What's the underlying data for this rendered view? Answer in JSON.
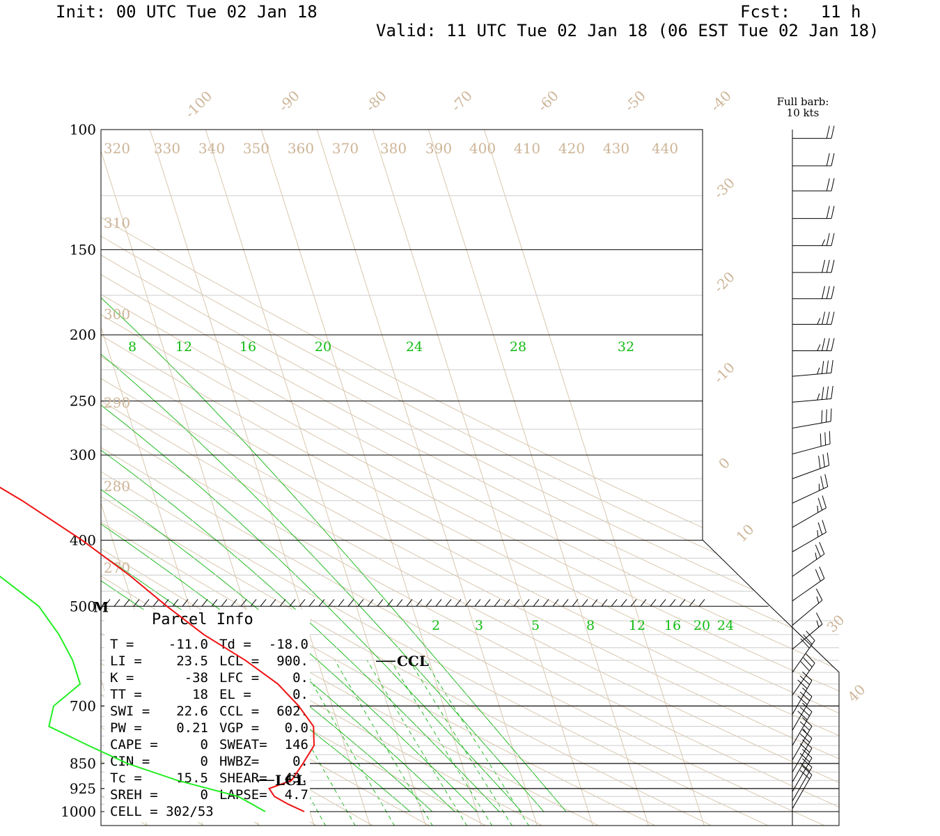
{
  "header": {
    "init": "Init: 00 UTC Tue 02 Jan 18",
    "fcst": "Fcst:   11 h",
    "valid": "Valid: 11 UTC Tue 02 Jan 18 (06 EST Tue 02 Jan 18)"
  },
  "barb_legend": {
    "line1": "Full barb:",
    "line2": "10 kts"
  },
  "chart_data": {
    "type": "line",
    "title": "",
    "y_axis": {
      "scale": "log-pressure",
      "range": [
        1000,
        100
      ],
      "tick_labels": [
        "100",
        "150",
        "200",
        "250",
        "300",
        "400",
        "500",
        "700",
        "850",
        "925",
        "1000"
      ],
      "ticks": [
        100,
        150,
        200,
        250,
        300,
        400,
        500,
        700,
        850,
        925,
        1000
      ]
    },
    "isotherms": {
      "labels": [
        "-100",
        "-90",
        "-80",
        "-70",
        "-60",
        "-50",
        "-40",
        "-30",
        "-20",
        "-10",
        "0",
        "10",
        "30",
        "40"
      ],
      "values": [
        -100,
        -90,
        -80,
        -70,
        -60,
        -50,
        -40,
        -30,
        -20,
        -10,
        0,
        10,
        30,
        40
      ]
    },
    "potential_temperature_labels": [
      "320",
      "330",
      "340",
      "350",
      "360",
      "370",
      "380",
      "390",
      "400",
      "410",
      "420",
      "430",
      "440",
      "310",
      "300",
      "290",
      "280",
      "270"
    ],
    "potential_temperature_values": [
      320,
      330,
      340,
      350,
      360,
      370,
      380,
      390,
      400,
      410,
      420,
      430,
      440,
      310,
      300,
      290,
      280,
      270
    ],
    "saturated_adiabat_labels": [
      "8",
      "12",
      "16",
      "20",
      "24",
      "28",
      "32"
    ],
    "saturated_adiabat_values": [
      8,
      12,
      16,
      20,
      24,
      28,
      32
    ],
    "mixing_ratio_labels": [
      "2",
      "3",
      "5",
      "8",
      "12",
      "16",
      "20",
      "24"
    ],
    "mixing_ratio_values": [
      2,
      3,
      5,
      8,
      12,
      16,
      20,
      24
    ],
    "series": [
      {
        "color": "#ee1111",
        "points": [
          [
            1000,
            -11.0
          ],
          [
            975,
            -13.5
          ],
          [
            950,
            -15.5
          ],
          [
            925,
            -16.0
          ],
          [
            900,
            -11.5
          ],
          [
            850,
            -8.5
          ],
          [
            800,
            -5.5
          ],
          [
            750,
            -4.5
          ],
          [
            700,
            -6.0
          ],
          [
            650,
            -8.5
          ],
          [
            600,
            -13.0
          ],
          [
            550,
            -19.0
          ],
          [
            500,
            -24.0
          ],
          [
            450,
            -29.0
          ],
          [
            400,
            -35.5
          ],
          [
            350,
            -44.0
          ],
          [
            320,
            -50.5
          ],
          [
            300,
            -51.0
          ],
          [
            275,
            -51.0
          ],
          [
            250,
            -51.0
          ],
          [
            225,
            -50.5
          ],
          [
            200,
            -50.0
          ],
          [
            175,
            -51.0
          ],
          [
            150,
            -53.5
          ],
          [
            125,
            -57.0
          ],
          [
            110,
            -60.0
          ],
          [
            104,
            -61.5
          ]
        ]
      },
      {
        "color": "#22ee22",
        "points": [
          [
            1000,
            -18.0
          ],
          [
            950,
            -22.0
          ],
          [
            900,
            -32.0
          ],
          [
            850,
            -40.0
          ],
          [
            800,
            -46.0
          ],
          [
            750,
            -52.0
          ],
          [
            700,
            -50.0
          ],
          [
            650,
            -44.0
          ],
          [
            600,
            -44.0
          ],
          [
            550,
            -45.0
          ],
          [
            500,
            -47.0
          ],
          [
            450,
            -52.5
          ],
          [
            400,
            -58.0
          ],
          [
            350,
            -67.0
          ],
          [
            300,
            -76.0
          ],
          [
            250,
            -86.0
          ],
          [
            225,
            -87.0
          ],
          [
            200,
            -87.0
          ],
          [
            175,
            -86.0
          ],
          [
            160,
            -83.5
          ],
          [
            150,
            -80.0
          ],
          [
            130,
            -77.5
          ],
          [
            115,
            -76.5
          ],
          [
            104,
            -76.0
          ]
        ]
      }
    ],
    "wind_barbs": [
      {
        "p": 103,
        "dir": 270,
        "kt": 20
      },
      {
        "p": 113,
        "dir": 270,
        "kt": 20
      },
      {
        "p": 123,
        "dir": 270,
        "kt": 20
      },
      {
        "p": 135,
        "dir": 270,
        "kt": 20
      },
      {
        "p": 148,
        "dir": 270,
        "kt": 25
      },
      {
        "p": 162,
        "dir": 270,
        "kt": 30
      },
      {
        "p": 177,
        "dir": 270,
        "kt": 30
      },
      {
        "p": 193,
        "dir": 270,
        "kt": 35
      },
      {
        "p": 211,
        "dir": 270,
        "kt": 35
      },
      {
        "p": 230,
        "dir": 275,
        "kt": 35
      },
      {
        "p": 251,
        "dir": 275,
        "kt": 35
      },
      {
        "p": 274,
        "dir": 280,
        "kt": 30
      },
      {
        "p": 299,
        "dir": 285,
        "kt": 30
      },
      {
        "p": 325,
        "dir": 290,
        "kt": 30
      },
      {
        "p": 353,
        "dir": 295,
        "kt": 25
      },
      {
        "p": 383,
        "dir": 300,
        "kt": 25
      },
      {
        "p": 416,
        "dir": 300,
        "kt": 25
      },
      {
        "p": 452,
        "dir": 305,
        "kt": 25
      },
      {
        "p": 491,
        "dir": 305,
        "kt": 20
      },
      {
        "p": 533,
        "dir": 310,
        "kt": 15
      },
      {
        "p": 578,
        "dir": 310,
        "kt": 15
      },
      {
        "p": 625,
        "dir": 325,
        "kt": 30
      },
      {
        "p": 675,
        "dir": 325,
        "kt": 30
      },
      {
        "p": 720,
        "dir": 330,
        "kt": 30
      },
      {
        "p": 760,
        "dir": 330,
        "kt": 30
      },
      {
        "p": 800,
        "dir": 330,
        "kt": 30
      },
      {
        "p": 840,
        "dir": 330,
        "kt": 25
      },
      {
        "p": 875,
        "dir": 330,
        "kt": 20
      },
      {
        "p": 905,
        "dir": 330,
        "kt": 20
      },
      {
        "p": 935,
        "dir": 330,
        "kt": 20
      },
      {
        "p": 965,
        "dir": 330,
        "kt": 20
      },
      {
        "p": 990,
        "dir": 330,
        "kt": 20
      }
    ],
    "markers": {
      "ccl": "CCL",
      "lcl": "LCL",
      "m": "M"
    }
  },
  "parcel_info": {
    "title": "Parcel Info",
    "rows": [
      [
        "T  =",
        "-11.0",
        "Td =",
        "-18.0"
      ],
      [
        "LI =",
        "23.5",
        "LCL =",
        "900."
      ],
      [
        "K  =",
        "-38",
        "LFC =",
        "0."
      ],
      [
        "TT =",
        "18",
        "EL  =",
        "0."
      ],
      [
        "SWI =",
        "22.6",
        "CCL =",
        "602."
      ],
      [
        "PW =",
        "0.21",
        "VGP =",
        "0.0"
      ],
      [
        "CAPE =",
        "0",
        "SWEAT=",
        "146"
      ],
      [
        "CIN =",
        "0",
        "HWBZ=",
        "0."
      ],
      [
        "Tc =",
        "15.5",
        "SHEAR=",
        "43."
      ],
      [
        "SREH =",
        "0",
        "LAPSE=",
        "4.7"
      ]
    ],
    "cell": "CELL = 302/53"
  }
}
